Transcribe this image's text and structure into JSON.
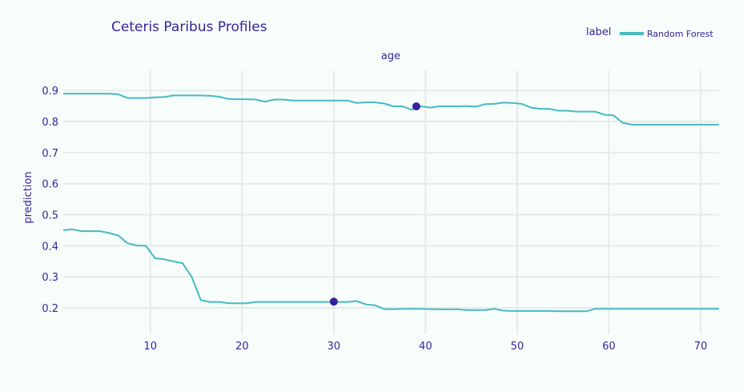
{
  "colors": {
    "background": "#f7fdfb",
    "grid": "#e6ebea",
    "line": "#46bac2",
    "point": "#371ea3",
    "text": "#37249a"
  },
  "legend": {
    "title": "label",
    "placement": "top-right",
    "entries": [
      "Random Forest"
    ]
  },
  "chart_data": {
    "type": "line",
    "title": "Ceteris Paribus Profiles",
    "subplot_title": "age",
    "xlabel": "",
    "ylabel": "prediction",
    "xlim": [
      0.5,
      72
    ],
    "ylim": [
      0.115,
      0.965
    ],
    "xticks": [
      10,
      20,
      30,
      40,
      50,
      60,
      70
    ],
    "yticks": [
      0.2,
      0.3,
      0.4,
      0.5,
      0.6,
      0.7,
      0.8,
      0.9
    ],
    "grid": true,
    "series": [
      {
        "name": "Random Forest",
        "observation": {
          "x": 39,
          "y": 0.849
        },
        "x": [
          0.5,
          1.5,
          2.5,
          3.5,
          4.5,
          5.5,
          6.5,
          7.5,
          8.5,
          9.5,
          10.5,
          11.5,
          12.5,
          13.5,
          14.5,
          15.5,
          16.5,
          17.5,
          18.5,
          19.5,
          20.5,
          21.5,
          22.5,
          23.5,
          24.5,
          25.5,
          26.5,
          27.5,
          28.5,
          29.5,
          30.5,
          31.5,
          32.5,
          33.5,
          34.5,
          35.5,
          36.5,
          37.5,
          38.5,
          39.5,
          40.5,
          41.5,
          42.5,
          43.5,
          44.5,
          45.5,
          46.5,
          47.5,
          48.5,
          49.5,
          50.5,
          51.5,
          52.5,
          53.5,
          54.5,
          55.5,
          56.5,
          57.5,
          58.5,
          59.5,
          60.5,
          61.5,
          62.5,
          63.5,
          64.5,
          65.5,
          66.5,
          67.5,
          68.5,
          69.5,
          70.5,
          71.5,
          72
        ],
        "y": [
          0.89,
          0.89,
          0.89,
          0.89,
          0.89,
          0.89,
          0.888,
          0.876,
          0.876,
          0.876,
          0.878,
          0.879,
          0.884,
          0.884,
          0.884,
          0.884,
          0.883,
          0.88,
          0.873,
          0.872,
          0.872,
          0.871,
          0.864,
          0.871,
          0.871,
          0.868,
          0.868,
          0.868,
          0.868,
          0.868,
          0.868,
          0.868,
          0.86,
          0.862,
          0.862,
          0.858,
          0.849,
          0.849,
          0.838,
          0.849,
          0.845,
          0.849,
          0.849,
          0.849,
          0.85,
          0.848,
          0.856,
          0.857,
          0.861,
          0.86,
          0.857,
          0.845,
          0.841,
          0.841,
          0.835,
          0.835,
          0.832,
          0.832,
          0.832,
          0.822,
          0.82,
          0.796,
          0.79,
          0.79,
          0.79,
          0.79,
          0.79,
          0.79,
          0.79,
          0.79,
          0.79,
          0.79,
          0.79
        ]
      },
      {
        "name": "Random Forest",
        "observation": {
          "x": 30,
          "y": 0.22
        },
        "x": [
          0.5,
          1.5,
          2.5,
          3.5,
          4.5,
          5.5,
          6.5,
          7.5,
          8.5,
          9.5,
          10.5,
          11.5,
          12.5,
          13.5,
          14.5,
          15.5,
          16.5,
          17.5,
          18.5,
          19.5,
          20.5,
          21.5,
          22.5,
          23.5,
          24.5,
          25.5,
          26.5,
          27.5,
          28.5,
          29.5,
          30.5,
          31.5,
          32.5,
          33.5,
          34.5,
          35.5,
          36.5,
          37.5,
          38.5,
          39.5,
          40.5,
          41.5,
          42.5,
          43.5,
          44.5,
          45.5,
          46.5,
          47.5,
          48.5,
          49.5,
          50.5,
          51.5,
          52.5,
          53.5,
          54.5,
          55.5,
          56.5,
          57.5,
          58.5,
          59.5,
          60.5,
          61.5,
          62.5,
          63.5,
          64.5,
          65.5,
          66.5,
          67.5,
          68.5,
          69.5,
          70.5,
          71.5,
          72
        ],
        "y": [
          0.45,
          0.453,
          0.447,
          0.447,
          0.447,
          0.441,
          0.433,
          0.408,
          0.401,
          0.4,
          0.36,
          0.356,
          0.35,
          0.344,
          0.3,
          0.225,
          0.219,
          0.219,
          0.215,
          0.215,
          0.215,
          0.219,
          0.219,
          0.219,
          0.219,
          0.219,
          0.219,
          0.219,
          0.219,
          0.219,
          0.219,
          0.219,
          0.222,
          0.211,
          0.208,
          0.196,
          0.196,
          0.197,
          0.197,
          0.197,
          0.196,
          0.195,
          0.195,
          0.195,
          0.193,
          0.193,
          0.193,
          0.197,
          0.191,
          0.19,
          0.19,
          0.19,
          0.19,
          0.19,
          0.189,
          0.189,
          0.189,
          0.189,
          0.197,
          0.197,
          0.197,
          0.197,
          0.197,
          0.197,
          0.197,
          0.197,
          0.197,
          0.197,
          0.197,
          0.197,
          0.197,
          0.197,
          0.197
        ]
      }
    ]
  }
}
